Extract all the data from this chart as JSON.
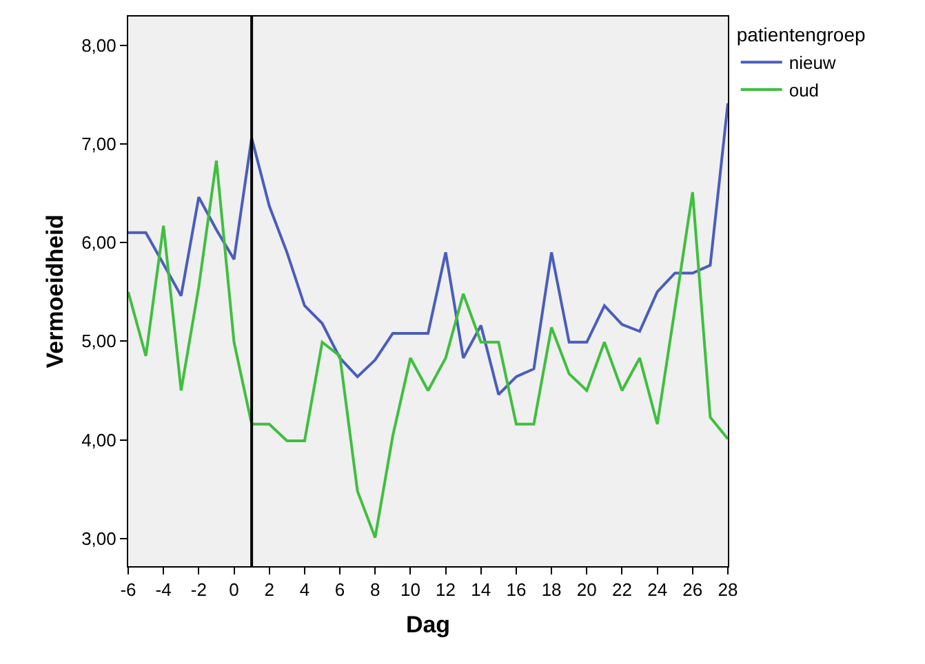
{
  "chart_data": {
    "type": "line",
    "xlabel": "Dag",
    "ylabel": "Vermoeidheid",
    "legend_title": "patientengroep",
    "x": [
      -6,
      -5,
      -4,
      -3,
      -2,
      -1,
      0,
      1,
      2,
      3,
      4,
      5,
      6,
      7,
      8,
      9,
      10,
      11,
      12,
      13,
      14,
      15,
      16,
      17,
      18,
      19,
      20,
      21,
      22,
      23,
      24,
      25,
      26,
      27,
      28
    ],
    "series": [
      {
        "name": "nieuw",
        "color": "#4a5dbd",
        "values": [
          6.1,
          6.1,
          5.78,
          5.46,
          6.46,
          6.13,
          5.83,
          7.06,
          6.37,
          5.9,
          5.36,
          5.18,
          4.83,
          4.64,
          4.81,
          5.08,
          5.08,
          5.08,
          5.9,
          4.83,
          5.16,
          4.46,
          4.64,
          4.72,
          5.9,
          4.99,
          4.99,
          5.36,
          5.17,
          5.1,
          5.5,
          5.69,
          5.69,
          5.77,
          7.41
        ]
      },
      {
        "name": "oud",
        "color": "#3fbf3f",
        "values": [
          5.5,
          4.85,
          6.17,
          4.5,
          5.55,
          6.83,
          4.99,
          4.16,
          4.16,
          3.99,
          3.99,
          4.99,
          4.85,
          3.48,
          3.01,
          4.04,
          4.83,
          4.5,
          4.83,
          5.48,
          4.99,
          4.99,
          4.16,
          4.16,
          5.14,
          4.67,
          4.5,
          4.99,
          4.5,
          4.83,
          4.16,
          5.33,
          6.51,
          4.23,
          4.01
        ]
      }
    ],
    "xlim": [
      -6,
      28
    ],
    "xticks": [
      -6,
      -4,
      -2,
      0,
      2,
      4,
      6,
      8,
      10,
      12,
      14,
      16,
      18,
      20,
      22,
      24,
      26,
      28
    ],
    "ylim": [
      2.72,
      8.29
    ],
    "yticks": [
      {
        "value": 3,
        "label": "3,00"
      },
      {
        "value": 4,
        "label": "4,00"
      },
      {
        "value": 5,
        "label": "5,00"
      },
      {
        "value": 6,
        "label": "6,00"
      },
      {
        "value": 7,
        "label": "7,00"
      },
      {
        "value": 8,
        "label": "8,00"
      }
    ],
    "ref_lines": [
      {
        "axis": "x",
        "value": 1,
        "label": null,
        "color": "#000000"
      }
    ],
    "grid": false,
    "legend": "top right",
    "marker": "none",
    "line_style": "solid"
  }
}
